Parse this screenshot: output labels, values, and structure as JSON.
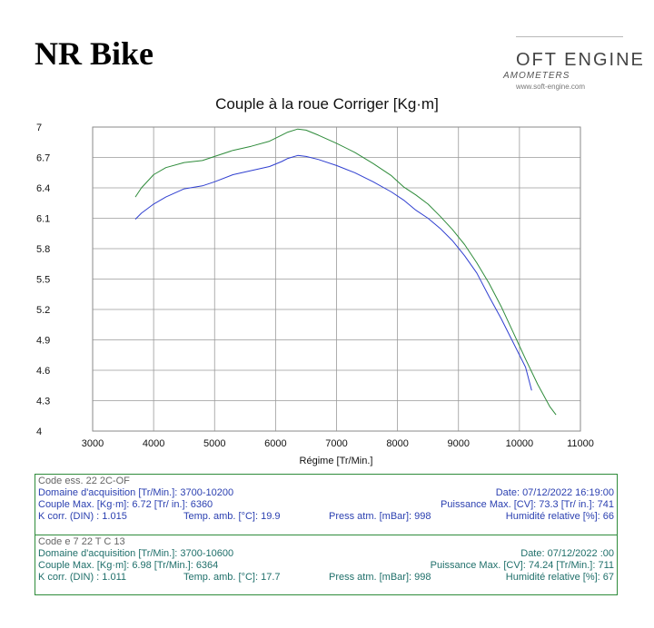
{
  "page": {
    "title": "NR Bike"
  },
  "logo": {
    "name": "OFT ENGINE",
    "sub": "AMOMETERS",
    "url": "www.soft-engine.com"
  },
  "chart_data": {
    "type": "line",
    "title": "Couple à la roue Corriger [Kg·m]",
    "xlabel": "Régime [Tr/Min.]",
    "ylabel": "",
    "xlim": [
      3000,
      11000
    ],
    "ylim": [
      4,
      7
    ],
    "xticks": [
      "3000",
      "4000",
      "5000",
      "6000",
      "7000",
      "8000",
      "9000",
      "10000",
      "11000"
    ],
    "yticks": [
      "4",
      "4.3",
      "4.6",
      "4.9",
      "5.2",
      "5.5",
      "5.8",
      "6.1",
      "6.4",
      "6.7",
      "7"
    ],
    "grid": true,
    "series": [
      {
        "color": "#2e8b3a",
        "x": [
          3700,
          3800,
          4000,
          4200,
          4500,
          4800,
          5000,
          5300,
          5600,
          5900,
          6100,
          6200,
          6364,
          6500,
          6700,
          7000,
          7300,
          7600,
          7900,
          8100,
          8300,
          8500,
          8700,
          8900,
          9100,
          9300,
          9500,
          9700,
          9900,
          10100,
          10300,
          10500,
          10600
        ],
        "y": [
          6.31,
          6.4,
          6.53,
          6.6,
          6.65,
          6.67,
          6.71,
          6.77,
          6.81,
          6.86,
          6.92,
          6.95,
          6.98,
          6.97,
          6.92,
          6.84,
          6.75,
          6.64,
          6.52,
          6.41,
          6.33,
          6.24,
          6.12,
          5.99,
          5.84,
          5.66,
          5.46,
          5.23,
          4.97,
          4.71,
          4.46,
          4.24,
          4.16
        ]
      },
      {
        "color": "#2f3fd0",
        "x": [
          3700,
          3800,
          4000,
          4200,
          4500,
          4800,
          5000,
          5300,
          5600,
          5900,
          6100,
          6200,
          6364,
          6500,
          6700,
          7000,
          7300,
          7600,
          7900,
          8100,
          8300,
          8500,
          8700,
          8900,
          9100,
          9300,
          9500,
          9700,
          9900,
          10100,
          10200
        ],
        "y": [
          6.09,
          6.15,
          6.24,
          6.31,
          6.39,
          6.42,
          6.46,
          6.53,
          6.57,
          6.61,
          6.66,
          6.69,
          6.72,
          6.71,
          6.68,
          6.62,
          6.55,
          6.46,
          6.36,
          6.28,
          6.18,
          6.1,
          6.0,
          5.88,
          5.73,
          5.56,
          5.33,
          5.11,
          4.87,
          4.63,
          4.4
        ]
      }
    ]
  },
  "info": {
    "run1": {
      "code": "Code ess.   22  2C-OF",
      "domain": "Domaine d'acquisition [Tr/Min.]: 3700-10200",
      "date": "Date: 07/12/2022   16:19:00",
      "couple": "Couple Max. [Kg·m]: 6.72  [Tr/ in.]: 6360",
      "puissance": "Puissance Max. [CV]: 73.3  [Tr/ in.]: 741",
      "kcorr": "K corr. (DIN) : 1.015",
      "temp": "Temp. amb. [°C]: 19.9",
      "press": "Press atm. [mBar]: 998",
      "humid": "Humidité relative [%]: 66"
    },
    "run2": {
      "code": "Code e   7 22 T  C 13",
      "domain": "Domaine d'acquisition [Tr/Min.]: 3700-10600",
      "date": "Date: 07/12/2022   :00",
      "couple": "Couple Max. [Kg·m]: 6.98  [Tr/Min.]: 6364",
      "puissance": "Puissance Max. [CV]: 74.24  [Tr/Min.]: 711",
      "kcorr": "K corr. (DIN) : 1.011",
      "temp": "Temp. amb. [°C]: 17.7",
      "press": "Press atm. [mBar]: 998",
      "humid": "Humidité relative [%]: 67"
    }
  }
}
